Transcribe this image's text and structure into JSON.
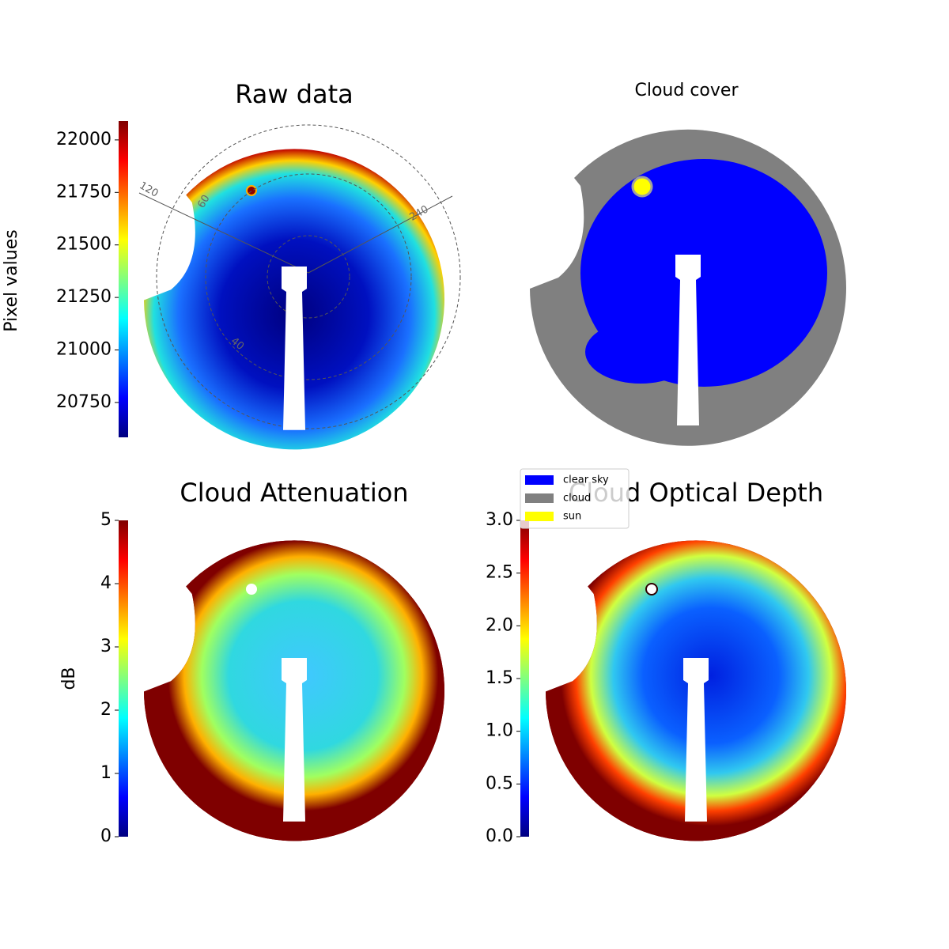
{
  "chart_data": [
    {
      "type": "image",
      "title": "Raw data",
      "colorbar_label": "Pixel values",
      "colormap": "jet",
      "ylim": [
        20584,
        22090
      ],
      "yticks": [
        20750,
        21000,
        21250,
        21500,
        21750,
        22000
      ],
      "annotations": [
        "120",
        "60",
        "240",
        "40"
      ]
    },
    {
      "type": "classes",
      "title": "Cloud cover",
      "classes": [
        {
          "name": "clear sky",
          "color": "#0000ff"
        },
        {
          "name": "cloud",
          "color": "#808080"
        },
        {
          "name": "sun",
          "color": "#ffff00"
        }
      ]
    },
    {
      "type": "image",
      "title": "Cloud Attenuation",
      "colorbar_label": "dB",
      "colormap": "jet",
      "ylim": [
        0,
        5
      ],
      "yticks": [
        0,
        1,
        2,
        3,
        4,
        5
      ]
    },
    {
      "type": "image",
      "title": "Cloud Optical Depth",
      "colormap": "jet",
      "ylim": [
        0,
        3
      ],
      "yticks": [
        {
          "value": 0,
          "label": "0.0"
        },
        0.5,
        {
          "value": 1,
          "label": "1.0"
        },
        1.5,
        {
          "value": 2,
          "label": "2.0"
        },
        2.5,
        {
          "value": 3,
          "label": "3.0"
        }
      ]
    }
  ]
}
